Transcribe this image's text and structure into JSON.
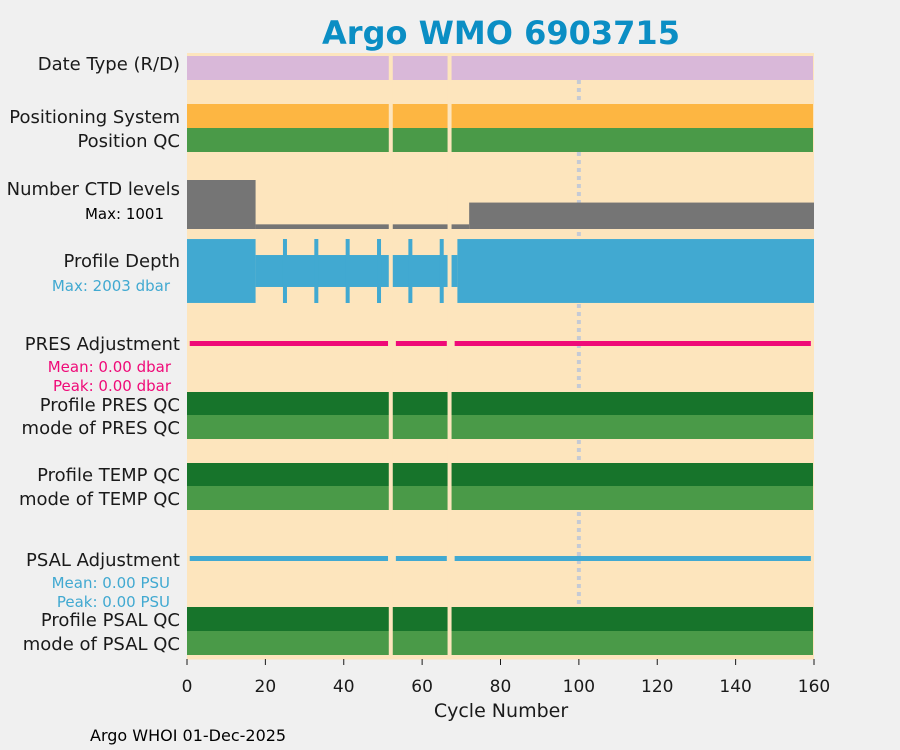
{
  "chart_data": {
    "type": "timeline",
    "title": "Argo WMO 6903715",
    "xlabel": "Cycle Number",
    "xlim": [
      0,
      160
    ],
    "xticks": [
      0,
      20,
      40,
      60,
      80,
      100,
      120,
      140,
      160
    ],
    "footer": "Argo WHOI 01-Dec-2025",
    "gap_cycles": [
      52,
      67
    ],
    "marker_cycle": 100,
    "last_cycle": 160,
    "colors": {
      "background": "#fde5bd",
      "page": "#f0f0f0",
      "date_type": "#d9b8d9",
      "positioning": "#fdb642",
      "qc_light": "#4a9a48",
      "qc_dark": "#17742b",
      "ctd": "#757575",
      "depth": "#41a9d1",
      "pres_adj": "#ef0a78",
      "psal_adj": "#41a9d1",
      "title": "#0b8ec4",
      "marker": "#c5cad5"
    },
    "rows": {
      "date_type": {
        "label": "Date Type (R/D)"
      },
      "positioning_system": {
        "label": "Positioning System"
      },
      "position_qc": {
        "label": "Position QC"
      },
      "ctd_levels": {
        "label": "Number CTD levels",
        "max_text": "Max: 1001",
        "max": 1001,
        "segments": [
          {
            "from": 0,
            "to": 17.5,
            "value": 1001
          },
          {
            "from": 17.5,
            "to": 72,
            "value": 95
          },
          {
            "from": 72,
            "to": 160,
            "value": 540
          }
        ]
      },
      "profile_depth": {
        "label": "Profile Depth",
        "max_text": "Max: 2003 dbar",
        "max_dbar": 2003,
        "segments": [
          {
            "from": 0,
            "to": 17.5,
            "value": 2000
          },
          {
            "from": 17.5,
            "to": 69,
            "value": 1000
          },
          {
            "from": 69,
            "to": 160,
            "value": 2000
          }
        ],
        "deep_cycles": [
          25,
          33,
          41,
          49,
          57,
          65
        ]
      },
      "pres_adjustment": {
        "label": "PRES Adjustment",
        "mean_text": "Mean: 0.00 dbar",
        "peak_text": "Peak: 0.00 dbar",
        "mean": 0.0,
        "peak": 0.0
      },
      "profile_pres_qc": {
        "label": "Profile PRES QC"
      },
      "mode_pres_qc": {
        "label": "mode of PRES QC"
      },
      "profile_temp_qc": {
        "label": "Profile TEMP QC"
      },
      "mode_temp_qc": {
        "label": "mode of TEMP QC"
      },
      "psal_adjustment": {
        "label": "PSAL Adjustment",
        "mean_text": "Mean: 0.00 PSU",
        "peak_text": "Peak: 0.00 PSU",
        "mean": 0.0,
        "peak": 0.0
      },
      "profile_psal_qc": {
        "label": "Profile PSAL QC"
      },
      "mode_psal_qc": {
        "label": "mode of PSAL QC"
      }
    }
  }
}
